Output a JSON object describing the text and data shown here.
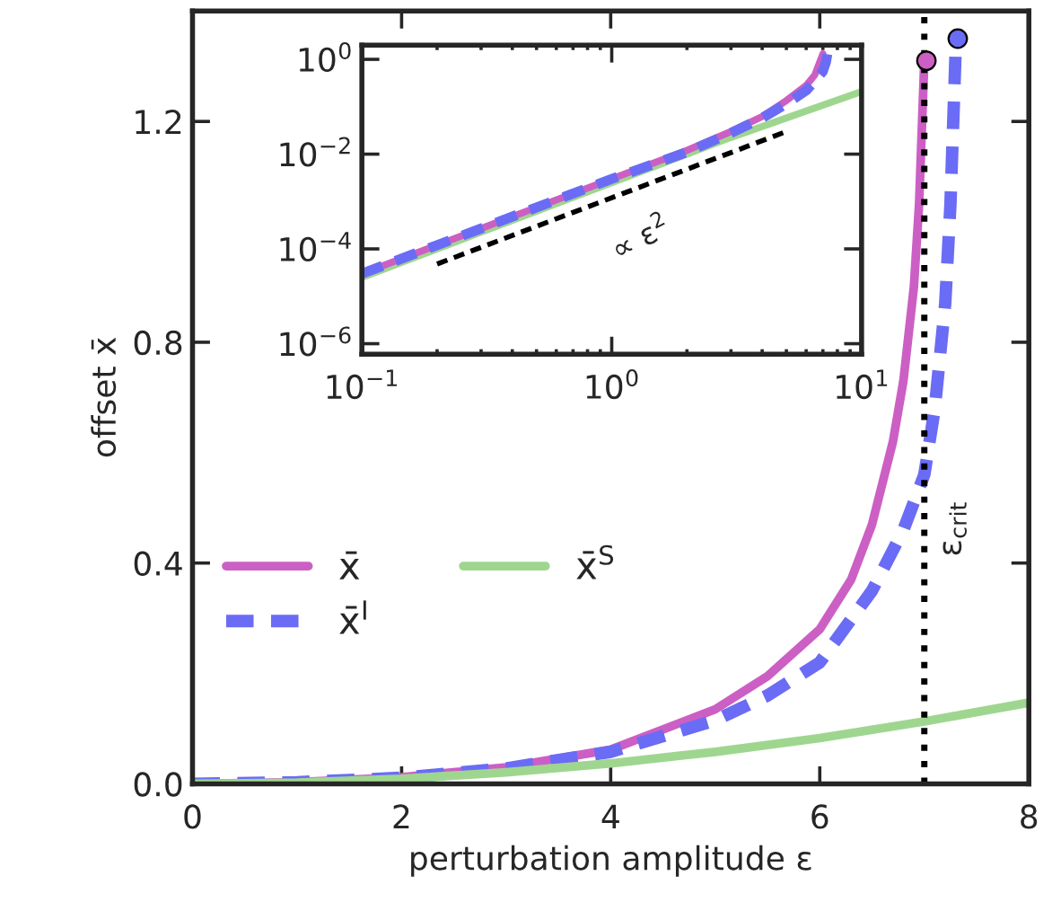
{
  "chart_data": [
    {
      "type": "line",
      "xlabel": "perturbation amplitude ε",
      "ylabel": "offset x̄",
      "xlim": [
        0,
        8
      ],
      "ylim": [
        0,
        1.4
      ],
      "xticks": [
        0,
        2,
        4,
        6,
        8
      ],
      "yticks": [
        {
          "value": 0,
          "label": "0.0"
        },
        {
          "value": 0.4,
          "label": "0.4"
        },
        {
          "value": 0.8,
          "label": "0.8"
        },
        {
          "value": 1.2,
          "label": "1.2"
        }
      ],
      "grid": false,
      "legend": "lower left",
      "ref_lines": [
        {
          "axis": "x",
          "value": 7.0,
          "label": "ε$_{crit}$",
          "color": "#000000",
          "line_style": "dotted"
        }
      ],
      "series": [
        {
          "name": "x̄",
          "color": "#cc5fc4",
          "line_style": "solid",
          "x": [
            0,
            1,
            2,
            3,
            4,
            5,
            5.5,
            6,
            6.3,
            6.5,
            6.7,
            6.8,
            6.9,
            6.95,
            7.0
          ],
          "values": [
            0,
            0.003,
            0.012,
            0.03,
            0.062,
            0.135,
            0.195,
            0.28,
            0.37,
            0.47,
            0.62,
            0.73,
            0.9,
            1.05,
            1.31
          ]
        },
        {
          "name": "x̄$^{I}$",
          "color": "#6a6cf5",
          "line_style": "dashed",
          "x": [
            0,
            1,
            2,
            3,
            4,
            5,
            5.5,
            6,
            6.5,
            6.8,
            7.0,
            7.1,
            7.2,
            7.25,
            7.3
          ],
          "values": [
            0,
            0.003,
            0.011,
            0.028,
            0.058,
            0.115,
            0.16,
            0.22,
            0.35,
            0.46,
            0.56,
            0.68,
            0.87,
            1.05,
            1.33
          ]
        },
        {
          "name": "x̄$^{S}$",
          "color": "#9fd68f",
          "line_style": "solid",
          "x": [
            0,
            1,
            2,
            3,
            4,
            5,
            6,
            7,
            8
          ],
          "values": [
            0,
            0.002,
            0.009,
            0.021,
            0.037,
            0.058,
            0.083,
            0.113,
            0.147
          ]
        },
        {
          "type": "scatter",
          "marker": "circle",
          "color": "#cc5fc4",
          "x": [
            7.02
          ],
          "values": [
            1.31
          ]
        },
        {
          "type": "scatter",
          "marker": "circle",
          "color": "#6a6cf5",
          "x": [
            7.32
          ],
          "values": [
            1.35
          ]
        }
      ]
    },
    {
      "type": "line",
      "log": "xy",
      "xlim": [
        0.1,
        10
      ],
      "ylim": [
        6e-07,
        2
      ],
      "xticks": [
        {
          "value": 0.1,
          "label": "10$^{−1}$"
        },
        {
          "value": 1,
          "label": "10$^{0}$"
        },
        {
          "value": 10,
          "label": "10$^{1}$"
        }
      ],
      "yticks": [
        {
          "value": 1e-06,
          "label": "10$^{−6}$"
        },
        {
          "value": 0.0001,
          "label": "10$^{−4}$"
        },
        {
          "value": 0.01,
          "label": "10$^{−2}$"
        },
        {
          "value": 1,
          "label": "10$^{0}$"
        }
      ],
      "grid": false,
      "annotations": [
        "∝ ε$^{2}$"
      ],
      "series": [
        {
          "color": "#9fd68f",
          "line_style": "solid",
          "x": [
            0.1,
            0.3,
            1,
            3,
            10
          ],
          "values": [
            2.5e-05,
            0.000225,
            0.0025,
            0.0225,
            0.21
          ]
        },
        {
          "color": "#cc5fc4",
          "line_style": "solid",
          "x": [
            0.1,
            0.2,
            0.5,
            1,
            2,
            3,
            4,
            5,
            6,
            6.5,
            7.0
          ],
          "values": [
            3e-05,
            0.00012,
            0.00075,
            0.003,
            0.012,
            0.03,
            0.062,
            0.135,
            0.28,
            0.47,
            1.31
          ]
        },
        {
          "color": "#6a6cf5",
          "line_style": "dashed",
          "x": [
            0.1,
            0.2,
            0.5,
            1,
            2,
            3,
            4,
            5,
            6,
            6.5,
            7.0,
            7.2,
            7.3
          ],
          "values": [
            3e-05,
            0.00012,
            0.00075,
            0.003,
            0.011,
            0.028,
            0.058,
            0.115,
            0.22,
            0.35,
            0.56,
            0.87,
            1.33
          ]
        },
        {
          "color": "#000000",
          "line_style": "dashed",
          "x": [
            0.2,
            4.9
          ],
          "values": [
            4.8e-05,
            0.0288
          ]
        }
      ]
    }
  ]
}
